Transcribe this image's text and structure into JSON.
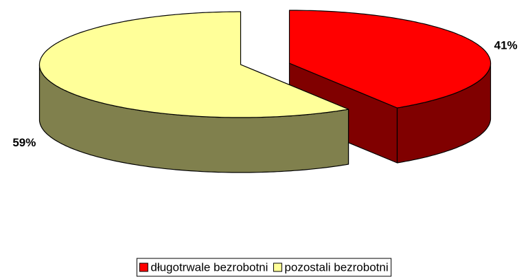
{
  "chart_data": {
    "type": "pie",
    "categories": [
      "długotrwale bezrobotni",
      "pozostali bezrobotni"
    ],
    "values": [
      41,
      59
    ],
    "value_labels": [
      "41%",
      "59%"
    ],
    "colors": [
      "#ff0000",
      "#ffff99"
    ],
    "legend": "bottom"
  }
}
